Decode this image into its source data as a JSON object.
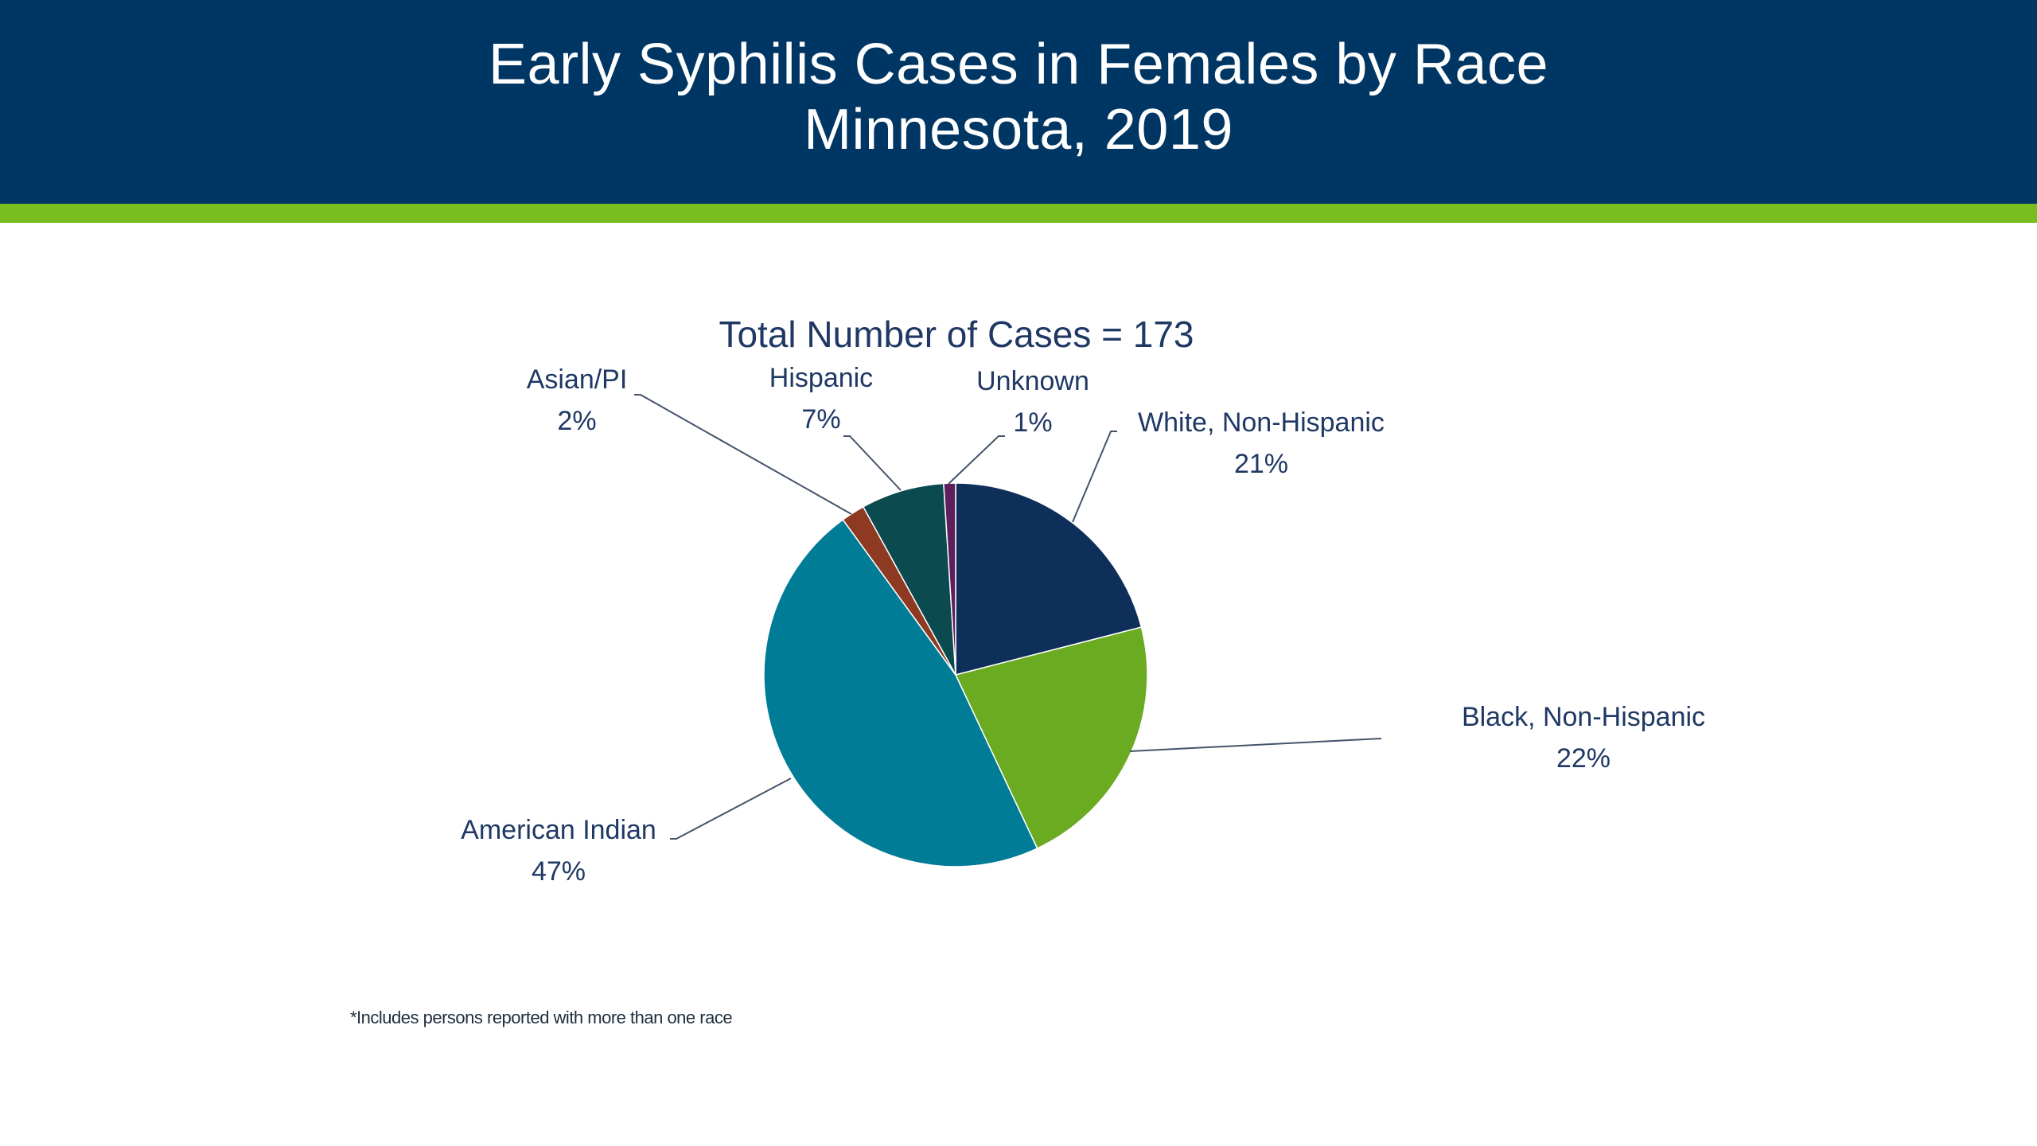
{
  "header": {
    "title_line1": "Early Syphilis Cases in Females by Race",
    "title_line2": "Minnesota, 2019"
  },
  "colors": {
    "header_bg": "#003663",
    "accent_bar": "#78be20",
    "label_text": "#1f3864"
  },
  "chart_data": {
    "type": "pie",
    "title": "Total Number of Cases = 173",
    "start_angle_deg": 0,
    "direction": "clockwise",
    "slices": [
      {
        "label": "White, Non-Hispanic",
        "value": 21,
        "display": "21%",
        "color": "#0d2f5a"
      },
      {
        "label": "Black, Non-Hispanic",
        "value": 22,
        "display": "22%",
        "color": "#6aab22"
      },
      {
        "label": "American Indian",
        "value": 47,
        "display": "47%",
        "color": "#007c96"
      },
      {
        "label": "Asian/PI",
        "value": 2,
        "display": "2%",
        "color": "#8e3a22"
      },
      {
        "label": "Hispanic",
        "value": 7,
        "display": "7%",
        "color": "#0b4a4e"
      },
      {
        "label": "Unknown",
        "value": 1,
        "display": "1%",
        "color": "#5e1f5c"
      }
    ]
  },
  "footnote": "*Includes persons reported with more than one race"
}
